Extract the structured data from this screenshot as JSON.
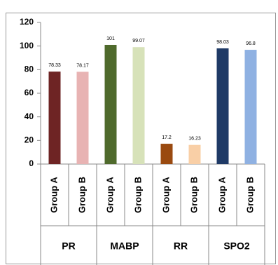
{
  "chart_data": {
    "type": "bar",
    "categories": [
      "Group A",
      "Group B",
      "Group A",
      "Group B",
      "Group A",
      "Group B",
      "Group A",
      "Group B"
    ],
    "groups": [
      "PR",
      "MABP",
      "RR",
      "SPO2"
    ],
    "values": [
      78.33,
      78.17,
      101,
      99.07,
      17.2,
      16.23,
      98.03,
      96.8
    ],
    "colors": [
      "#6e2424",
      "#e8b3b3",
      "#4f6a2c",
      "#d7e2b9",
      "#9a4a10",
      "#f9cfa6",
      "#1f3a66",
      "#8fb1e2"
    ],
    "ylim": [
      0,
      120
    ],
    "yticks": [
      0,
      20,
      40,
      60,
      80,
      100,
      120
    ],
    "grid": false
  }
}
